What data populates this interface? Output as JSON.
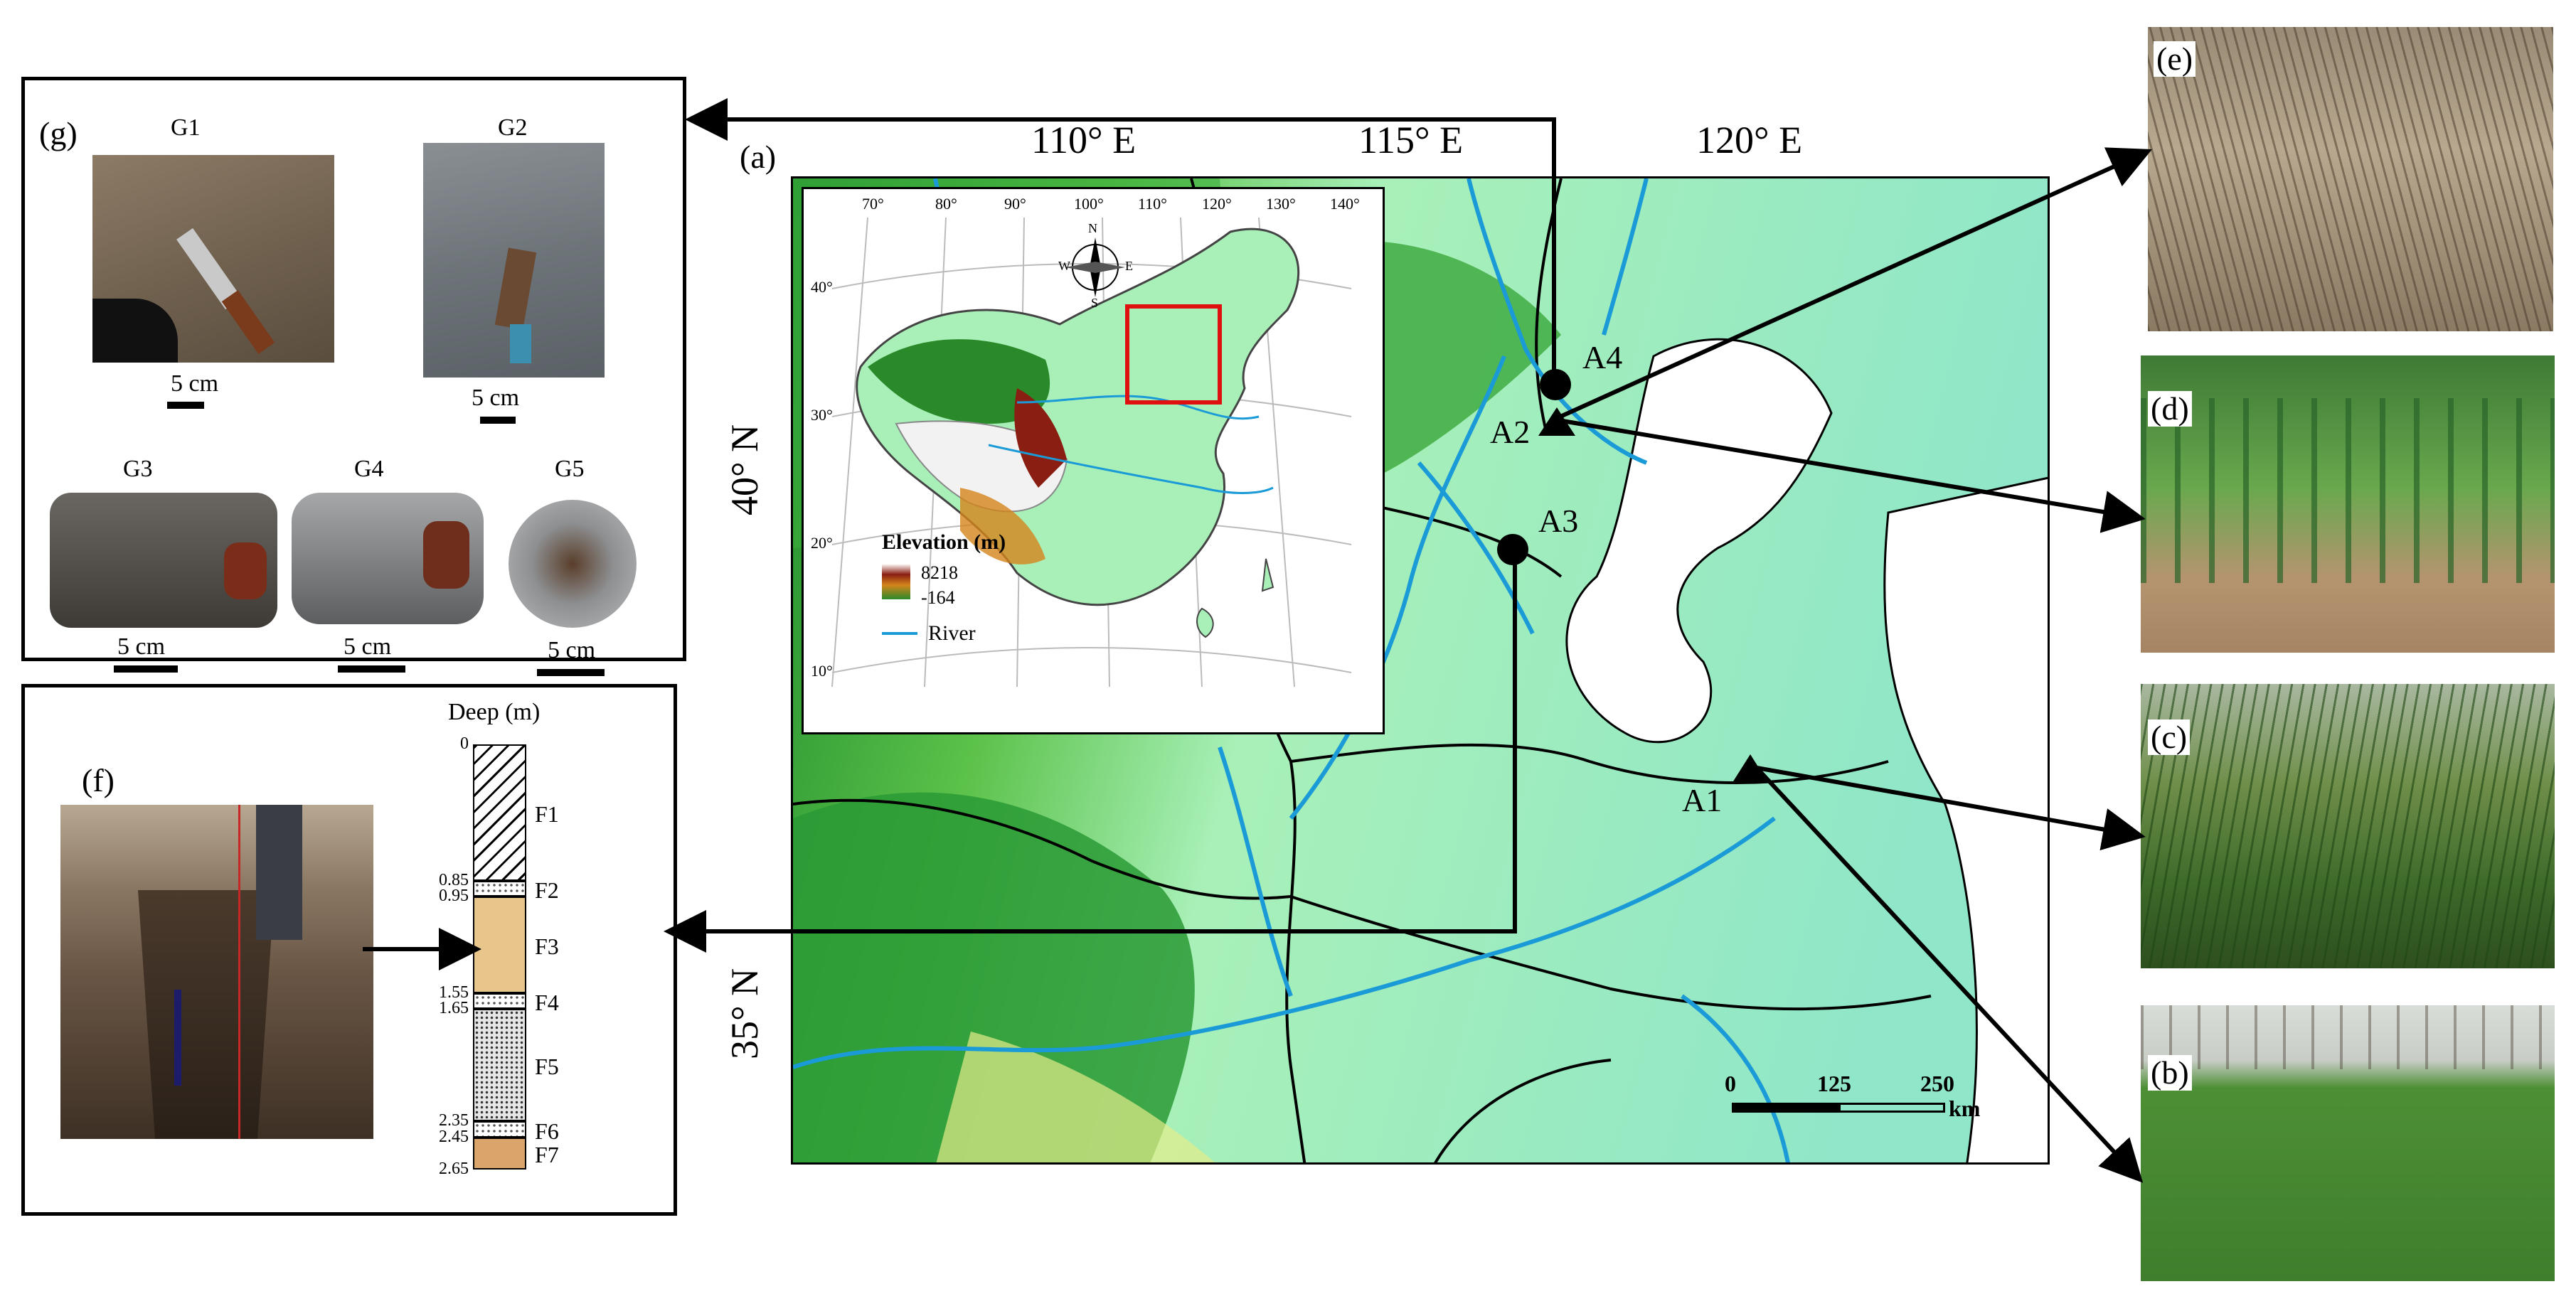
{
  "panels": {
    "g": {
      "label": "(g)",
      "samples": [
        {
          "id": "G1",
          "scale": "5 cm"
        },
        {
          "id": "G2",
          "scale": "5 cm"
        },
        {
          "id": "G3",
          "scale": "5 cm"
        },
        {
          "id": "G4",
          "scale": "5 cm"
        },
        {
          "id": "G5",
          "scale": "5 cm"
        }
      ]
    },
    "f": {
      "label": "(f)",
      "column_title": "Deep (m)",
      "depths": [
        "0",
        "0.85",
        "0.95",
        "1.55",
        "1.65",
        "2.35",
        "2.45",
        "2.65"
      ],
      "layers": [
        {
          "name": "F1",
          "top": 0,
          "bottom": 0.85,
          "fill": "hatch"
        },
        {
          "name": "F2",
          "top": 0.85,
          "bottom": 0.95,
          "fill": "dots-light"
        },
        {
          "name": "F3",
          "top": 0.95,
          "bottom": 1.55,
          "fill": "#e8c58a"
        },
        {
          "name": "F4",
          "top": 1.55,
          "bottom": 1.65,
          "fill": "dots-light"
        },
        {
          "name": "F5",
          "top": 1.65,
          "bottom": 2.35,
          "fill": "dots-gray"
        },
        {
          "name": "F6",
          "top": 2.35,
          "bottom": 2.45,
          "fill": "dots-light"
        },
        {
          "name": "F7",
          "top": 2.45,
          "bottom": 2.65,
          "fill": "#d9a56a"
        }
      ]
    },
    "a": {
      "label": "(a)",
      "lon_labels": [
        "110° E",
        "115° E",
        "120° E"
      ],
      "lat_labels": [
        "40° N",
        "35° N"
      ],
      "sites": [
        {
          "id": "A1",
          "marker": "triangle"
        },
        {
          "id": "A2",
          "marker": "triangle"
        },
        {
          "id": "A3",
          "marker": "circle"
        },
        {
          "id": "A4",
          "marker": "circle"
        }
      ],
      "scale_bar": {
        "ticks": [
          "0",
          "125",
          "250"
        ],
        "unit": "km"
      },
      "inset": {
        "lon_ticks": [
          "70°",
          "80°",
          "90°",
          "100°",
          "110°",
          "120°",
          "130°",
          "140°"
        ],
        "lat_ticks": [
          "40°",
          "30°",
          "20°",
          "10°"
        ],
        "compass": [
          "N",
          "E",
          "S",
          "W"
        ],
        "legend": {
          "title": "Elevation (m)",
          "max": "8218",
          "min": "-164",
          "river_label": "River"
        }
      }
    },
    "photos": [
      {
        "label": "(e)"
      },
      {
        "label": "(d)"
      },
      {
        "label": "(c)"
      },
      {
        "label": "(b)"
      }
    ]
  },
  "colors": {
    "lowland": "#8fe6c8",
    "plain": "#a8f0b8",
    "hill": "#5cc24a",
    "mountain": "#1e8a2c",
    "sea": "#ffffff",
    "river": "#1a9ad6",
    "inset_box": "#e01010"
  }
}
